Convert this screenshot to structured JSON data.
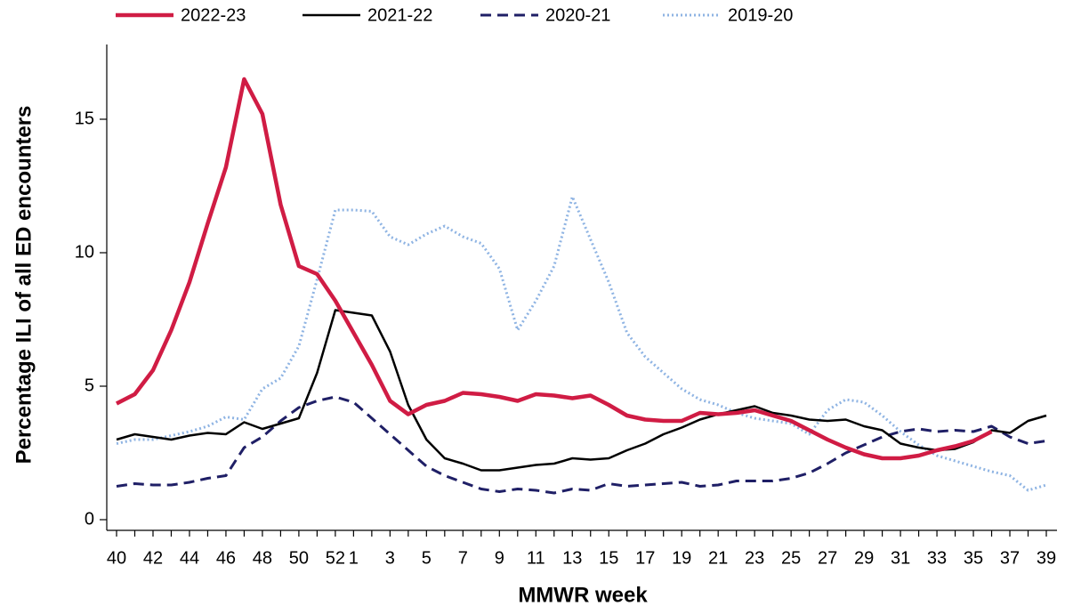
{
  "chart_data": {
    "type": "line",
    "xlabel": "MMWR week",
    "ylabel": "Percentage ILI of all ED encounters",
    "categories": [
      "40",
      null,
      "42",
      null,
      "44",
      null,
      "46",
      null,
      "48",
      null,
      "50",
      null,
      "52",
      "1",
      null,
      "3",
      null,
      "5",
      null,
      "7",
      null,
      "9",
      null,
      "11",
      null,
      "13",
      null,
      "15",
      null,
      "17",
      null,
      "19",
      null,
      "21",
      null,
      "23",
      null,
      "25",
      null,
      "27",
      null,
      "29",
      null,
      "31",
      null,
      "33",
      null,
      "35",
      null,
      "37",
      null,
      "39"
    ],
    "ylim": [
      -0.4,
      17.8
    ],
    "yticks": [
      0,
      5,
      10,
      15
    ],
    "legend": "top",
    "series": [
      {
        "name": "2022-23",
        "color": "#d01c44",
        "style": "solid",
        "values": [
          4.35,
          4.7,
          5.6,
          7.1,
          8.9,
          11.1,
          13.2,
          16.5,
          15.2,
          11.8,
          9.5,
          9.2,
          8.2,
          7.0,
          5.8,
          4.45,
          3.95,
          4.3,
          4.45,
          4.75,
          4.7,
          4.6,
          4.45,
          4.7,
          4.65,
          4.55,
          4.65,
          4.3,
          3.9,
          3.75,
          3.7,
          3.7,
          4.0,
          3.95,
          4.0,
          4.1,
          3.9,
          3.7,
          3.35,
          3.0,
          2.7,
          2.45,
          2.3,
          2.3,
          2.4,
          2.6,
          2.75,
          2.95,
          3.3,
          null,
          null,
          null
        ]
      },
      {
        "name": "2021-22",
        "color": "#000000",
        "style": "solid",
        "values": [
          3.0,
          3.2,
          3.1,
          3.0,
          3.15,
          3.25,
          3.2,
          3.65,
          3.4,
          3.6,
          3.8,
          5.5,
          7.85,
          7.75,
          7.65,
          6.3,
          4.3,
          3.0,
          2.3,
          2.1,
          1.85,
          1.85,
          1.95,
          2.05,
          2.1,
          2.3,
          2.25,
          2.3,
          2.6,
          2.85,
          3.2,
          3.45,
          3.75,
          3.95,
          4.1,
          4.25,
          4.0,
          3.9,
          3.75,
          3.7,
          3.75,
          3.5,
          3.35,
          2.85,
          2.7,
          2.6,
          2.65,
          2.9,
          3.35,
          3.25,
          3.7,
          3.9
        ]
      },
      {
        "name": "2020-21",
        "color": "#1f1f66",
        "style": "dashed",
        "values": [
          1.25,
          1.35,
          1.3,
          1.3,
          1.4,
          1.55,
          1.65,
          2.7,
          3.1,
          3.7,
          4.2,
          4.45,
          4.6,
          4.4,
          3.8,
          3.2,
          2.6,
          2.0,
          1.65,
          1.4,
          1.15,
          1.05,
          1.15,
          1.1,
          1.0,
          1.15,
          1.1,
          1.35,
          1.25,
          1.3,
          1.35,
          1.4,
          1.25,
          1.3,
          1.45,
          1.45,
          1.45,
          1.55,
          1.75,
          2.1,
          2.5,
          2.8,
          3.1,
          3.3,
          3.4,
          3.3,
          3.35,
          3.3,
          3.5,
          3.1,
          2.85,
          2.95
        ]
      },
      {
        "name": "2019-20",
        "color": "#8fb4e3",
        "style": "dotted",
        "values": [
          2.85,
          3.0,
          3.0,
          3.15,
          3.3,
          3.5,
          3.85,
          3.75,
          4.9,
          5.3,
          6.5,
          9.0,
          11.6,
          11.6,
          11.55,
          10.6,
          10.3,
          10.7,
          11.0,
          10.6,
          10.35,
          9.4,
          7.1,
          8.2,
          9.5,
          12.1,
          10.5,
          8.9,
          7.0,
          6.1,
          5.5,
          4.9,
          4.5,
          4.3,
          4.0,
          3.8,
          3.7,
          3.6,
          3.2,
          4.1,
          4.5,
          4.4,
          3.9,
          3.3,
          2.8,
          2.4,
          2.2,
          2.0,
          1.8,
          1.65,
          1.1,
          1.3
        ]
      }
    ]
  }
}
